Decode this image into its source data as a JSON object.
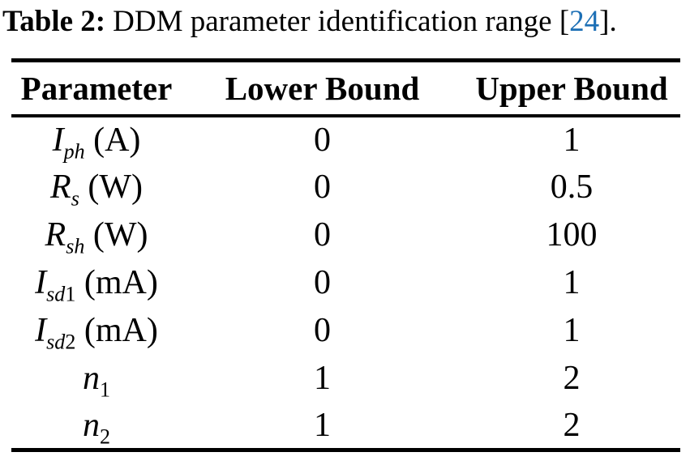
{
  "page": {
    "background": "#ffffff",
    "text_color": "#000000"
  },
  "caption": {
    "label": "Table 2:",
    "text": "DDM parameter identification range ",
    "bracket_open": "[",
    "citation": "24",
    "bracket_close": "].",
    "citation_color": "#1c6fb5"
  },
  "table": {
    "headers": [
      {
        "label": "Parameter"
      },
      {
        "label": "Lower Bound"
      },
      {
        "label": "Upper Bound"
      }
    ],
    "rows": [
      {
        "symbol": "I",
        "sub_italic": "ph",
        "sub_regular": "",
        "unit": "(A)",
        "lower": "0",
        "upper": "1"
      },
      {
        "symbol": "R",
        "sub_italic": "s",
        "sub_regular": "",
        "unit": "(W)",
        "lower": "0",
        "upper": "0.5"
      },
      {
        "symbol": "R",
        "sub_italic": "sh",
        "sub_regular": "",
        "unit": "(W)",
        "lower": "0",
        "upper": "100"
      },
      {
        "symbol": "I",
        "sub_italic": "sd",
        "sub_regular": "1",
        "unit": "(mA)",
        "lower": "0",
        "upper": "1"
      },
      {
        "symbol": "I",
        "sub_italic": "sd",
        "sub_regular": "2",
        "unit": "(mA)",
        "lower": "0",
        "upper": "1"
      },
      {
        "symbol": "n",
        "sub_italic": "",
        "sub_regular": "1",
        "unit": "",
        "lower": "1",
        "upper": "2"
      },
      {
        "symbol": "n",
        "sub_italic": "",
        "sub_regular": "2",
        "unit": "",
        "lower": "1",
        "upper": "2"
      }
    ]
  }
}
